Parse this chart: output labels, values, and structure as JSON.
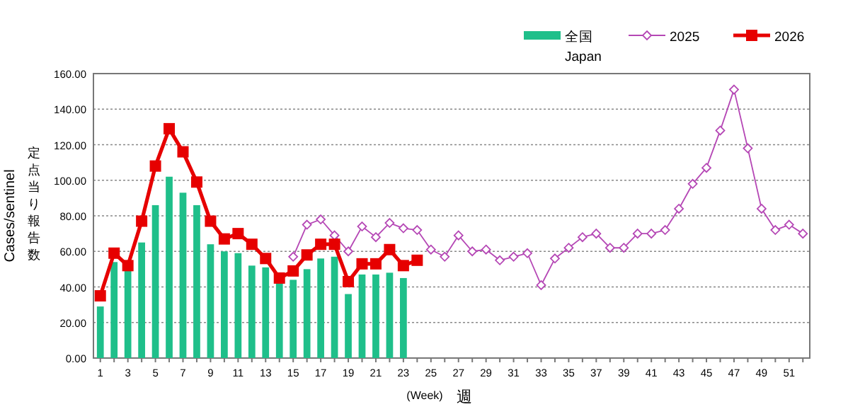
{
  "chart_data": {
    "type": "bar",
    "xlabel": "週",
    "ylabel": "Cases/sentinel",
    "annotations": [
      "(Week)",
      "定点当り報告数"
    ],
    "categories": [
      "1",
      null,
      "3",
      null,
      "5",
      null,
      "7",
      null,
      "9",
      null,
      "11",
      null,
      "13",
      null,
      "15",
      null,
      "17",
      null,
      "19",
      null,
      "21",
      null,
      "23",
      null,
      "25",
      null,
      "27",
      null,
      "29",
      null,
      "31",
      null,
      "33",
      null,
      "35",
      null,
      "37",
      null,
      "39",
      null,
      "41",
      null,
      "43",
      null,
      "45",
      null,
      "47",
      null,
      "49",
      null,
      "51",
      null
    ],
    "series": [
      {
        "name": "全国\nJapan",
        "color": "#1fbf8a",
        "values": [
          29,
          54,
          49,
          65,
          86,
          102,
          93,
          86,
          64,
          60,
          59,
          52,
          51,
          43,
          44,
          50,
          56,
          57,
          36,
          47,
          47,
          48,
          45,
          null,
          null,
          null,
          null,
          null,
          null,
          null,
          null,
          null,
          null,
          null,
          null,
          null,
          null,
          null,
          null,
          null,
          null,
          null,
          null,
          null,
          null,
          null,
          null,
          null,
          null,
          null,
          null,
          null
        ]
      },
      {
        "name": "2025",
        "type": "line",
        "color": "#b547b5",
        "marker": "diamond",
        "values": [
          null,
          null,
          null,
          null,
          null,
          null,
          null,
          null,
          null,
          null,
          null,
          null,
          null,
          null,
          57,
          75,
          78,
          69,
          60,
          74,
          68,
          76,
          73,
          72,
          61,
          57,
          69,
          60,
          61,
          55,
          57,
          59,
          41,
          56,
          62,
          68,
          70,
          62,
          62,
          70,
          70,
          72,
          84,
          98,
          107,
          128,
          151,
          118,
          84,
          72,
          75,
          70
        ]
      },
      {
        "name": "2026",
        "type": "line",
        "color": "#e60000",
        "marker": "square",
        "values": [
          35,
          59,
          52,
          77,
          108,
          129,
          116,
          99,
          77,
          67,
          70,
          64,
          56,
          45,
          49,
          58,
          64,
          64,
          43,
          53,
          53,
          61,
          52,
          55,
          null,
          null,
          null,
          null,
          null,
          null,
          null,
          null,
          null,
          null,
          null,
          null,
          null,
          null,
          null,
          null,
          null,
          null,
          null,
          null,
          null,
          null,
          null,
          null,
          null,
          null,
          null,
          null
        ]
      }
    ],
    "ylim": [
      0,
      160
    ],
    "yticks": [
      {
        "value": 0,
        "label": "0.00"
      },
      {
        "value": 20,
        "label": "20.00"
      },
      {
        "value": 40,
        "label": "40.00"
      },
      {
        "value": 60,
        "label": "60.00"
      },
      {
        "value": 80,
        "label": "80.00"
      },
      {
        "value": 100,
        "label": "100.00"
      },
      {
        "value": 120,
        "label": "120.00"
      },
      {
        "value": 140,
        "label": "140.00"
      },
      {
        "value": 160,
        "label": "160.00"
      }
    ],
    "grid": "y",
    "legend": "top right"
  }
}
